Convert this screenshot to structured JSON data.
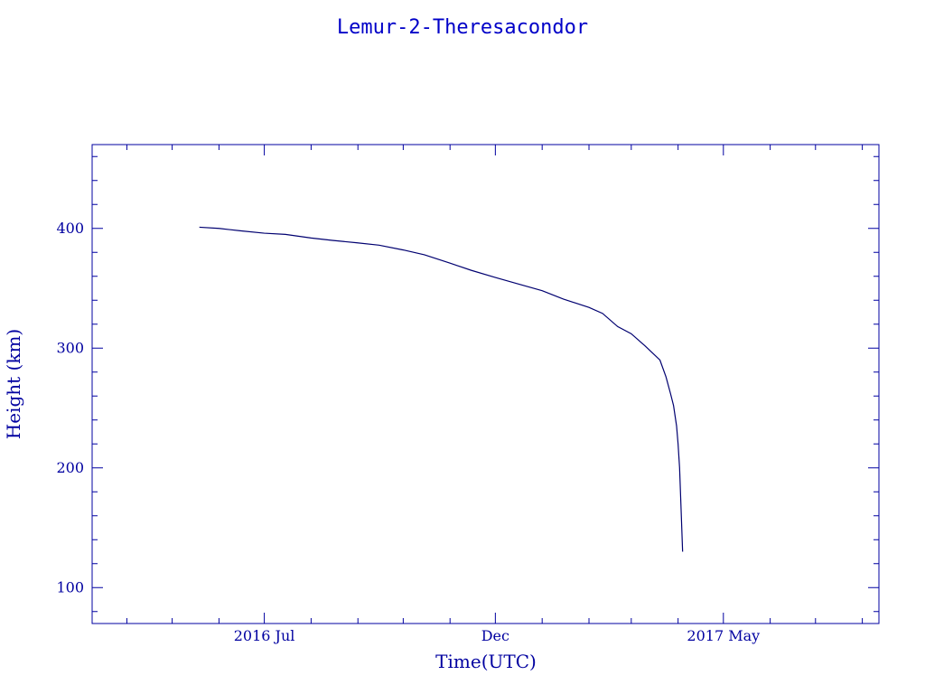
{
  "chart_data": {
    "type": "line",
    "title": "Lemur-2-Theresacondor",
    "xlabel": "Time(UTC)",
    "ylabel": "Height (km)",
    "x_axis": {
      "type": "date",
      "range": [
        "2016-03-09",
        "2017-08-12"
      ],
      "tick_labels": [
        {
          "date": "2016-07-01",
          "label": "2016 Jul"
        },
        {
          "date": "2016-12-01",
          "label": "Dec"
        },
        {
          "date": "2017-05-01",
          "label": "2017 May"
        }
      ]
    },
    "y_axis": {
      "range": [
        70,
        470
      ],
      "ticks": [
        100,
        200,
        300,
        400
      ]
    },
    "grid": false,
    "colors": {
      "line": "#000070",
      "axis": "#0000a0",
      "title": "#0000c8"
    },
    "series": [
      {
        "x": [
          "2016-05-19",
          "2016-06-01",
          "2016-06-15",
          "2016-07-01",
          "2016-07-15",
          "2016-08-01",
          "2016-08-15",
          "2016-08-31",
          "2016-09-15",
          "2016-10-01",
          "2016-10-15",
          "2016-11-01",
          "2016-11-15",
          "2016-12-01",
          "2016-12-15",
          "2017-01-01",
          "2017-01-15",
          "2017-02-01",
          "2017-02-10",
          "2017-02-20",
          "2017-03-01",
          "2017-03-10",
          "2017-03-20",
          "2017-03-24",
          "2017-03-27",
          "2017-03-29",
          "2017-03-31",
          "2017-04-01",
          "2017-04-02",
          "2017-04-03",
          "2017-04-04"
        ],
        "y": [
          401,
          400,
          398,
          396,
          395,
          392,
          390,
          388,
          386,
          382,
          378,
          371,
          365,
          359,
          354,
          348,
          341,
          334,
          329,
          318,
          312,
          302,
          290,
          276,
          262,
          252,
          235,
          220,
          200,
          165,
          130
        ]
      }
    ]
  }
}
